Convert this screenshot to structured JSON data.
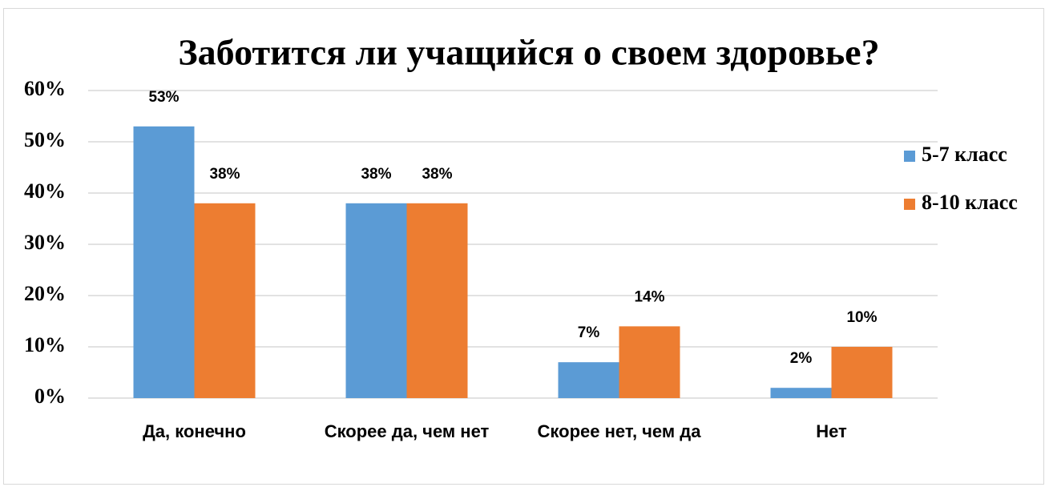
{
  "chart_data": {
    "type": "bar",
    "title": "Заботится ли учащийся о своем здоровье?",
    "categories": [
      "Да, конечно",
      "Скорее да, чем нет",
      "Скорее нет, чем да",
      "Нет"
    ],
    "series": [
      {
        "name": "5-7 класс",
        "color": "#5b9bd5",
        "values": [
          53,
          38,
          7,
          2
        ],
        "value_labels": [
          "53%",
          "38%",
          "7%",
          "2%"
        ]
      },
      {
        "name": "8-10 класс",
        "color": "#ed7d31",
        "values": [
          38,
          38,
          14,
          10
        ],
        "value_labels": [
          "38%",
          "38%",
          "14%",
          "10%"
        ]
      }
    ],
    "ylim": [
      0,
      60
    ],
    "yticks": [
      {
        "value": 0,
        "label": "0%"
      },
      {
        "value": 10,
        "label": "10%"
      },
      {
        "value": 20,
        "label": "20%"
      },
      {
        "value": 30,
        "label": "30%"
      },
      {
        "value": 40,
        "label": "40%"
      },
      {
        "value": 50,
        "label": "50%"
      },
      {
        "value": 60,
        "label": "60%"
      }
    ],
    "grid": true,
    "legend": "right"
  }
}
